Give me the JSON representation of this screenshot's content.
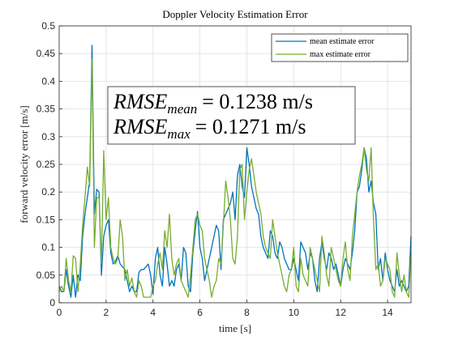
{
  "chart_data": {
    "type": "line",
    "title": "Doppler Velocity Estimation Error",
    "xlabel": "time [s]",
    "ylabel": "forward velocity error [m/s]",
    "xlim": [
      0,
      15
    ],
    "ylim": [
      0,
      0.5
    ],
    "xticks": [
      "0",
      "2",
      "4",
      "6",
      "8",
      "10",
      "12",
      "14"
    ],
    "yticks": [
      "0",
      "0.05",
      "0.1",
      "0.15",
      "0.2",
      "0.25",
      "0.3",
      "0.35",
      "0.4",
      "0.45",
      "0.5"
    ],
    "grid": true,
    "legend_position": "top-right",
    "annotation": {
      "line1": {
        "symbol": "RMSE",
        "subscript": "mean",
        "value": "= 0.1238 m/s"
      },
      "line2": {
        "symbol": "RMSE",
        "subscript": "max",
        "value": "= 0.1271 m/s"
      }
    },
    "series": [
      {
        "name": "mean estimate error",
        "color": "#0072BD",
        "x": [
          0.0,
          0.1,
          0.2,
          0.3,
          0.4,
          0.5,
          0.6,
          0.7,
          0.8,
          0.9,
          1.0,
          1.1,
          1.2,
          1.3,
          1.4,
          1.5,
          1.6,
          1.7,
          1.8,
          1.9,
          2.0,
          2.1,
          2.2,
          2.3,
          2.4,
          2.5,
          2.6,
          2.7,
          2.8,
          2.9,
          3.0,
          3.1,
          3.2,
          3.3,
          3.4,
          3.5,
          3.6,
          3.7,
          3.8,
          3.9,
          4.0,
          4.1,
          4.2,
          4.3,
          4.4,
          4.5,
          4.6,
          4.7,
          4.8,
          4.9,
          5.0,
          5.1,
          5.2,
          5.3,
          5.4,
          5.5,
          5.6,
          5.7,
          5.8,
          5.9,
          6.0,
          6.1,
          6.2,
          6.3,
          6.4,
          6.5,
          6.6,
          6.7,
          6.8,
          6.9,
          7.0,
          7.1,
          7.2,
          7.3,
          7.4,
          7.5,
          7.6,
          7.7,
          7.8,
          7.9,
          8.0,
          8.1,
          8.2,
          8.3,
          8.4,
          8.5,
          8.6,
          8.7,
          8.8,
          8.9,
          9.0,
          9.1,
          9.2,
          9.3,
          9.4,
          9.5,
          9.6,
          9.7,
          9.8,
          9.9,
          10.0,
          10.1,
          10.2,
          10.3,
          10.4,
          10.5,
          10.6,
          10.7,
          10.8,
          10.9,
          11.0,
          11.1,
          11.2,
          11.3,
          11.4,
          11.5,
          11.6,
          11.7,
          11.8,
          11.9,
          12.0,
          12.1,
          12.2,
          12.3,
          12.4,
          12.5,
          12.6,
          12.7,
          12.8,
          12.9,
          13.0,
          13.1,
          13.2,
          13.3,
          13.4,
          13.5,
          13.6,
          13.7,
          13.8,
          13.9,
          14.0,
          14.1,
          14.2,
          14.3,
          14.4,
          14.5,
          14.6,
          14.7,
          14.8,
          14.9,
          15.0
        ],
        "values": [
          0.03,
          0.02,
          0.02,
          0.06,
          0.03,
          0.01,
          0.05,
          0.01,
          0.05,
          0.04,
          0.12,
          0.16,
          0.19,
          0.22,
          0.465,
          0.16,
          0.205,
          0.2,
          0.05,
          0.12,
          0.14,
          0.15,
          0.09,
          0.07,
          0.075,
          0.085,
          0.07,
          0.065,
          0.06,
          0.04,
          0.02,
          0.03,
          0.02,
          0.02,
          0.055,
          0.06,
          0.06,
          0.065,
          0.07,
          0.05,
          0.015,
          0.08,
          0.1,
          0.05,
          0.03,
          0.1,
          0.07,
          0.03,
          0.04,
          0.03,
          0.06,
          0.07,
          0.04,
          0.1,
          0.09,
          0.03,
          0.02,
          0.09,
          0.13,
          0.165,
          0.1,
          0.08,
          0.04,
          0.06,
          0.08,
          0.1,
          0.12,
          0.14,
          0.13,
          0.06,
          0.15,
          0.16,
          0.17,
          0.18,
          0.2,
          0.15,
          0.23,
          0.25,
          0.21,
          0.19,
          0.28,
          0.25,
          0.21,
          0.19,
          0.17,
          0.16,
          0.12,
          0.1,
          0.09,
          0.08,
          0.13,
          0.12,
          0.09,
          0.08,
          0.11,
          0.1,
          0.08,
          0.07,
          0.06,
          0.06,
          0.08,
          0.06,
          0.04,
          0.11,
          0.1,
          0.09,
          0.06,
          0.09,
          0.08,
          0.04,
          0.02,
          0.08,
          0.11,
          0.08,
          0.06,
          0.09,
          0.08,
          0.06,
          0.07,
          0.05,
          0.03,
          0.06,
          0.08,
          0.07,
          0.06,
          0.09,
          0.13,
          0.2,
          0.21,
          0.24,
          0.28,
          0.26,
          0.2,
          0.22,
          0.18,
          0.16,
          0.06,
          0.08,
          0.04,
          0.09,
          0.06,
          0.04,
          0.03,
          0.02,
          0.06,
          0.03,
          0.04,
          0.03,
          0.02,
          0.03,
          0.12
        ]
      },
      {
        "name": "max estimate error",
        "color": "#77AC30",
        "x": [
          0.0,
          0.1,
          0.2,
          0.3,
          0.4,
          0.5,
          0.6,
          0.7,
          0.8,
          0.9,
          1.0,
          1.1,
          1.2,
          1.3,
          1.4,
          1.5,
          1.6,
          1.7,
          1.8,
          1.9,
          2.0,
          2.1,
          2.2,
          2.3,
          2.4,
          2.5,
          2.6,
          2.7,
          2.8,
          2.9,
          3.0,
          3.1,
          3.2,
          3.3,
          3.4,
          3.5,
          3.6,
          3.7,
          3.8,
          3.9,
          4.0,
          4.1,
          4.2,
          4.3,
          4.4,
          4.5,
          4.6,
          4.7,
          4.8,
          4.9,
          5.0,
          5.1,
          5.2,
          5.3,
          5.4,
          5.5,
          5.6,
          5.7,
          5.8,
          5.9,
          6.0,
          6.1,
          6.2,
          6.3,
          6.4,
          6.5,
          6.6,
          6.7,
          6.8,
          6.9,
          7.0,
          7.1,
          7.2,
          7.3,
          7.4,
          7.5,
          7.6,
          7.7,
          7.8,
          7.9,
          8.0,
          8.1,
          8.2,
          8.3,
          8.4,
          8.5,
          8.6,
          8.7,
          8.8,
          8.9,
          9.0,
          9.1,
          9.2,
          9.3,
          9.4,
          9.5,
          9.6,
          9.7,
          9.8,
          9.9,
          10.0,
          10.1,
          10.2,
          10.3,
          10.4,
          10.5,
          10.6,
          10.7,
          10.8,
          10.9,
          11.0,
          11.1,
          11.2,
          11.3,
          11.4,
          11.5,
          11.6,
          11.7,
          11.8,
          11.9,
          12.0,
          12.1,
          12.2,
          12.3,
          12.4,
          12.5,
          12.6,
          12.7,
          12.8,
          12.9,
          13.0,
          13.1,
          13.2,
          13.3,
          13.4,
          13.5,
          13.6,
          13.7,
          13.8,
          13.9,
          14.0,
          14.1,
          14.2,
          14.3,
          14.4,
          14.5,
          14.6,
          14.7,
          14.8,
          14.9,
          15.0
        ],
        "values": [
          0.02,
          0.03,
          0.02,
          0.08,
          0.04,
          0.02,
          0.085,
          0.08,
          0.02,
          0.07,
          0.14,
          0.19,
          0.245,
          0.21,
          0.44,
          0.1,
          0.19,
          0.19,
          0.07,
          0.275,
          0.15,
          0.19,
          0.1,
          0.08,
          0.07,
          0.08,
          0.15,
          0.12,
          0.04,
          0.06,
          0.03,
          0.045,
          0.02,
          0.01,
          0.04,
          0.03,
          0.01,
          0.01,
          0.01,
          0.01,
          0.03,
          0.04,
          0.07,
          0.09,
          0.06,
          0.13,
          0.1,
          0.16,
          0.08,
          0.05,
          0.07,
          0.08,
          0.04,
          0.03,
          0.02,
          0.01,
          0.05,
          0.1,
          0.15,
          0.16,
          0.14,
          0.13,
          0.08,
          0.06,
          0.04,
          0.01,
          0.03,
          0.04,
          0.08,
          0.07,
          0.14,
          0.22,
          0.19,
          0.15,
          0.08,
          0.07,
          0.12,
          0.24,
          0.25,
          0.15,
          0.2,
          0.24,
          0.26,
          0.23,
          0.2,
          0.18,
          0.16,
          0.12,
          0.1,
          0.09,
          0.08,
          0.15,
          0.12,
          0.09,
          0.07,
          0.05,
          0.03,
          0.02,
          0.05,
          0.06,
          0.1,
          0.03,
          0.02,
          0.08,
          0.05,
          0.04,
          0.03,
          0.1,
          0.08,
          0.06,
          0.04,
          0.02,
          0.12,
          0.09,
          0.05,
          0.03,
          0.1,
          0.08,
          0.06,
          0.04,
          0.03,
          0.08,
          0.11,
          0.06,
          0.04,
          0.12,
          0.16,
          0.2,
          0.23,
          0.25,
          0.28,
          0.24,
          0.22,
          0.28,
          0.15,
          0.06,
          0.07,
          0.03,
          0.04,
          0.08,
          0.07,
          0.06,
          0.02,
          0.01,
          0.09,
          0.05,
          0.02,
          0.05,
          0.02,
          0.01,
          0.09
        ]
      }
    ]
  }
}
